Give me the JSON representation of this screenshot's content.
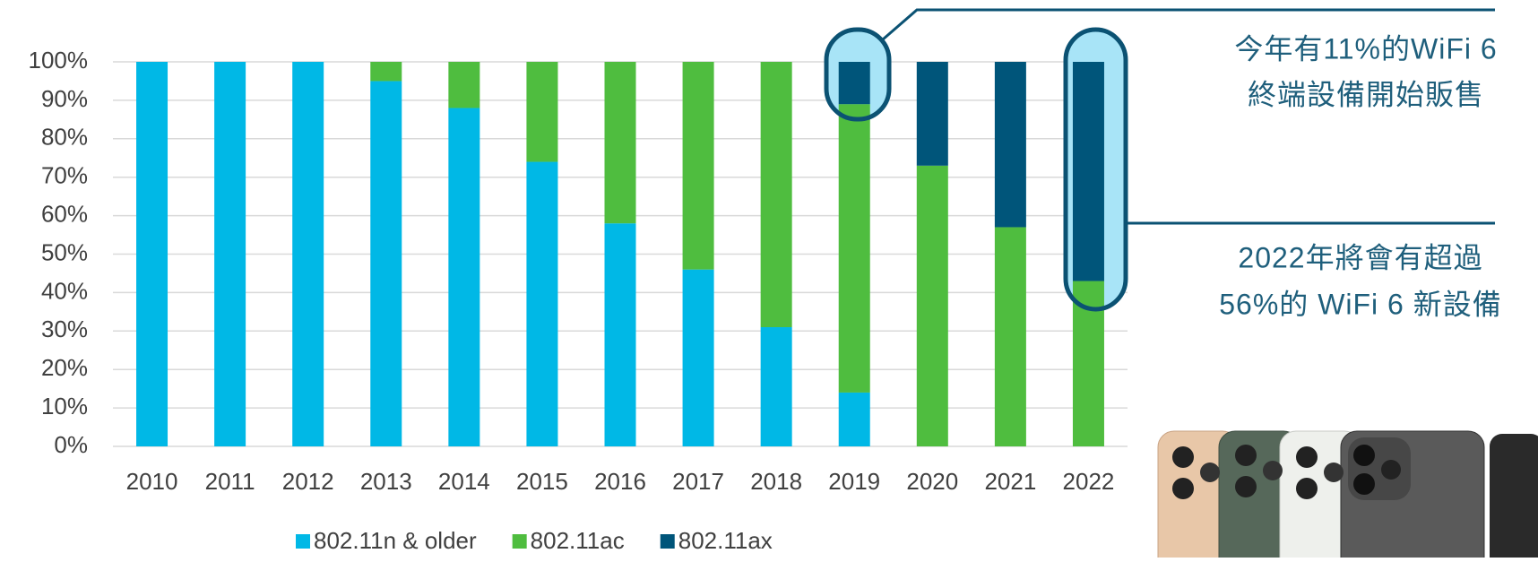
{
  "chart_data": {
    "type": "stacked_bar",
    "categories": [
      "2010",
      "2011",
      "2012",
      "2013",
      "2014",
      "2015",
      "2016",
      "2017",
      "2018",
      "2019",
      "2020",
      "2021",
      "2022"
    ],
    "series": [
      {
        "name": "802.11n & older",
        "color": "#00b8e6",
        "values": [
          100,
          100,
          100,
          95,
          88,
          74,
          58,
          46,
          31,
          14,
          0,
          0,
          0
        ]
      },
      {
        "name": "802.11ac",
        "color": "#4fbd3f",
        "values": [
          0,
          0,
          0,
          5,
          12,
          26,
          42,
          54,
          69,
          75,
          73,
          57,
          43
        ]
      },
      {
        "name": "802.11ax",
        "color": "#00557a",
        "values": [
          0,
          0,
          0,
          0,
          0,
          0,
          0,
          0,
          0,
          11,
          27,
          43,
          57
        ]
      }
    ],
    "ylim": [
      0,
      100
    ],
    "yticks": [
      {
        "value": 0,
        "label": "0%"
      },
      {
        "value": 10,
        "label": "10%"
      },
      {
        "value": 20,
        "label": "20%"
      },
      {
        "value": 30,
        "label": "30%"
      },
      {
        "value": 40,
        "label": "40%"
      },
      {
        "value": 50,
        "label": "50%"
      },
      {
        "value": 60,
        "label": "60%"
      },
      {
        "value": 70,
        "label": "70%"
      },
      {
        "value": 80,
        "label": "80%"
      },
      {
        "value": 90,
        "label": "90%"
      },
      {
        "value": 100,
        "label": "100%"
      }
    ],
    "grid": true,
    "legend": "bottom",
    "annotations": [
      [
        "今年有11%的WiFi 6",
        "終端設備開始販售"
      ],
      [
        "2022年將會有超過",
        "56%的 WiFi 6 新設備"
      ]
    ]
  }
}
